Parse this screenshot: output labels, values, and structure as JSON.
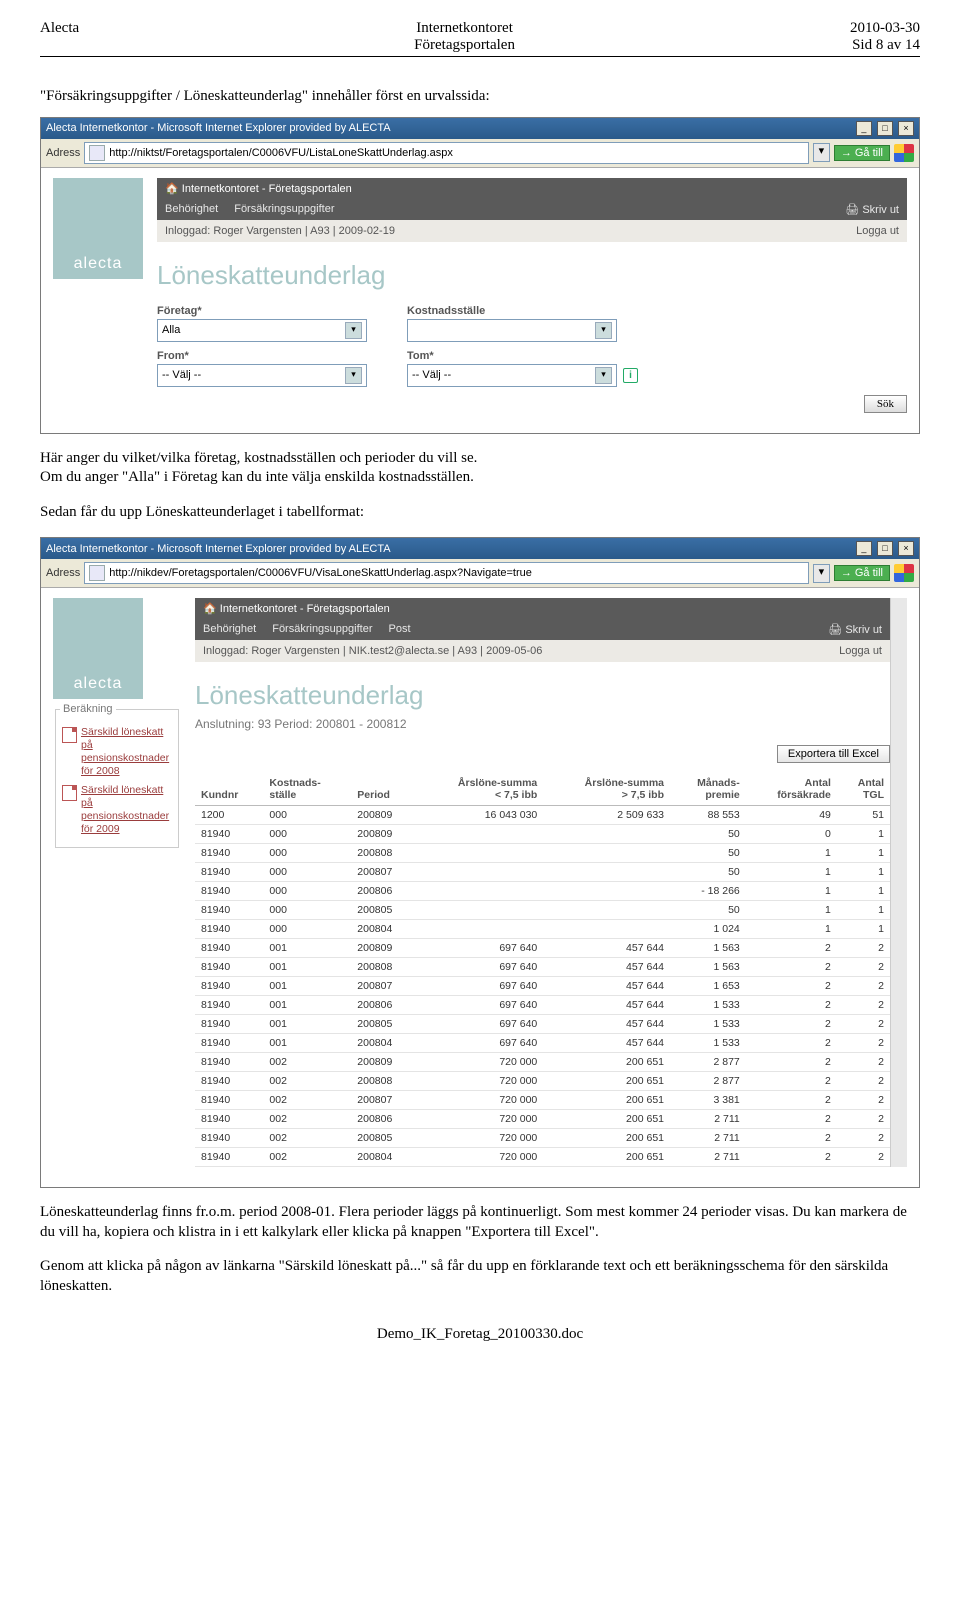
{
  "doc": {
    "left": "Alecta",
    "center1": "Internetkontoret",
    "center2": "Företagsportalen",
    "right1": "2010-03-30",
    "right2": "Sid 8 av 14",
    "footer": "Demo_IK_Foretag_20100330.doc"
  },
  "text": {
    "p1": "\"Försäkringsuppgifter / Löneskatteunderlag\" innehåller först en urvalssida:",
    "p2a": "Här anger du vilket/vilka företag, kostnadsställen och perioder du vill se.",
    "p2b": "Om du anger \"Alla\" i Företag kan du inte välja enskilda kostnadsställen.",
    "p3": "Sedan får du upp Löneskatteunderlaget i tabellformat:",
    "p4": "Löneskatteunderlag finns fr.o.m. period 2008-01. Flera perioder läggs på kontinuerligt. Som mest kommer 24 perioder visas. Du kan markera de du vill ha, kopiera och klistra in i ett kalkylark eller klicka på knappen \"Exportera till Excel\".",
    "p5": "Genom att klicka på någon av länkarna \"Särskild löneskatt på...\" så får du upp en förklarande text och ett beräkningsschema för den särskilda löneskatten."
  },
  "win1": {
    "title": "Alecta Internetkontor - Microsoft Internet Explorer provided by ALECTA",
    "addr_label": "Adress",
    "url": "http://niktst/Foretagsportalen/C0006VFU/ListaLoneSkattUnderlag.aspx",
    "go": "Gå till",
    "logo": "alecta",
    "topbar": "Internetkontoret - Företagsportalen",
    "menu": [
      "Behörighet",
      "Försäkringsuppgifter"
    ],
    "print": "Skriv ut",
    "logged": "Inloggad: Roger Vargensten | A93 | 2009-02-19",
    "logout": "Logga ut",
    "h1": "Löneskatteunderlag",
    "f_foretag_label": "Företag*",
    "f_foretag_val": "Alla",
    "f_kost_label": "Kostnadsställe",
    "f_kost_val": "",
    "f_from_label": "From*",
    "f_from_val": "-- Välj --",
    "f_tom_label": "Tom*",
    "f_tom_val": "-- Välj --",
    "sok": "Sök"
  },
  "win2": {
    "title": "Alecta Internetkontor - Microsoft Internet Explorer provided by ALECTA",
    "addr_label": "Adress",
    "url": "http://nikdev/Foretagsportalen/C0006VFU/VisaLoneSkattUnderlag.aspx?Navigate=true",
    "go": "Gå till",
    "logo": "alecta",
    "topbar": "Internetkontoret - Företagsportalen",
    "menu": [
      "Behörighet",
      "Försäkringsuppgifter",
      "Post"
    ],
    "print": "Skriv ut",
    "logged": "Inloggad: Roger Vargensten | NIK.test2@alecta.se | A93 | 2009-05-06",
    "logout": "Logga ut",
    "h1": "Löneskatteunderlag",
    "sub": "Anslutning: 93 Period: 200801 - 200812",
    "side_legend": "Beräkning",
    "side_links": [
      "Särskild löneskatt på pensionskostnader för 2008",
      "Särskild löneskatt på pensionskostnader för 2009"
    ],
    "export": "Exportera till Excel",
    "cols": [
      "Kundnr",
      "Kostnads-\nställe",
      "Period",
      "Årslöne-summa\n< 7,5 ibb",
      "Årslöne-summa\n> 7,5 ibb",
      "Månads-\npremie",
      "Antal\nförsäkrade",
      "Antal\nTGL"
    ],
    "rows": [
      [
        "1200",
        "000",
        "200809",
        "16 043 030",
        "2 509 633",
        "88 553",
        "49",
        "51"
      ],
      [
        "81940",
        "000",
        "200809",
        "",
        "",
        "50",
        "0",
        "1"
      ],
      [
        "81940",
        "000",
        "200808",
        "",
        "",
        "50",
        "1",
        "1"
      ],
      [
        "81940",
        "000",
        "200807",
        "",
        "",
        "50",
        "1",
        "1"
      ],
      [
        "81940",
        "000",
        "200806",
        "",
        "",
        "- 18 266",
        "1",
        "1"
      ],
      [
        "81940",
        "000",
        "200805",
        "",
        "",
        "50",
        "1",
        "1"
      ],
      [
        "81940",
        "000",
        "200804",
        "",
        "",
        "1 024",
        "1",
        "1"
      ],
      [
        "81940",
        "001",
        "200809",
        "697 640",
        "457 644",
        "1 563",
        "2",
        "2"
      ],
      [
        "81940",
        "001",
        "200808",
        "697 640",
        "457 644",
        "1 563",
        "2",
        "2"
      ],
      [
        "81940",
        "001",
        "200807",
        "697 640",
        "457 644",
        "1 653",
        "2",
        "2"
      ],
      [
        "81940",
        "001",
        "200806",
        "697 640",
        "457 644",
        "1 533",
        "2",
        "2"
      ],
      [
        "81940",
        "001",
        "200805",
        "697 640",
        "457 644",
        "1 533",
        "2",
        "2"
      ],
      [
        "81940",
        "001",
        "200804",
        "697 640",
        "457 644",
        "1 533",
        "2",
        "2"
      ],
      [
        "81940",
        "002",
        "200809",
        "720 000",
        "200 651",
        "2 877",
        "2",
        "2"
      ],
      [
        "81940",
        "002",
        "200808",
        "720 000",
        "200 651",
        "2 877",
        "2",
        "2"
      ],
      [
        "81940",
        "002",
        "200807",
        "720 000",
        "200 651",
        "3 381",
        "2",
        "2"
      ],
      [
        "81940",
        "002",
        "200806",
        "720 000",
        "200 651",
        "2 711",
        "2",
        "2"
      ],
      [
        "81940",
        "002",
        "200805",
        "720 000",
        "200 651",
        "2 711",
        "2",
        "2"
      ],
      [
        "81940",
        "002",
        "200804",
        "720 000",
        "200 651",
        "2 711",
        "2",
        "2"
      ]
    ]
  }
}
